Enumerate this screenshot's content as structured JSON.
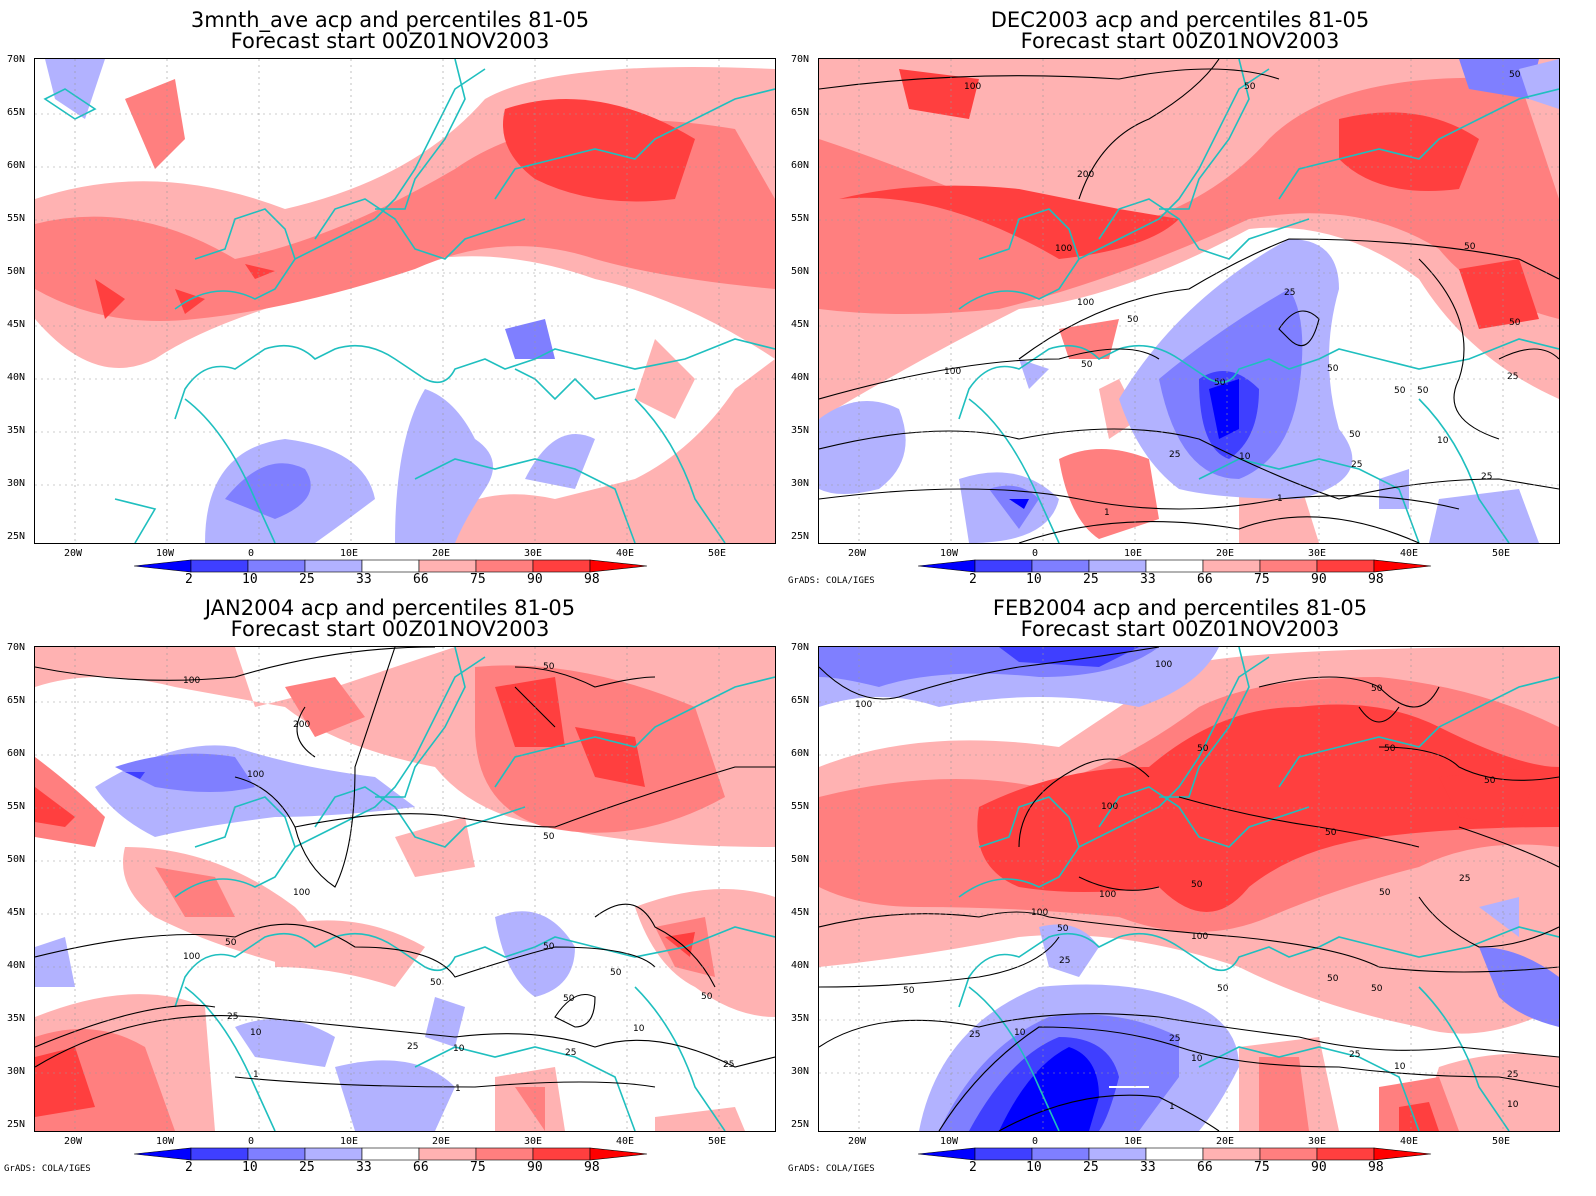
{
  "credit": "GrADS: COLA/IGES",
  "lat_labels": [
    "70N",
    "65N",
    "60N",
    "55N",
    "50N",
    "45N",
    "40N",
    "35N",
    "30N",
    "25N"
  ],
  "lon_labels": [
    "20W",
    "10W",
    "0",
    "10E",
    "20E",
    "30E",
    "40E",
    "50E"
  ],
  "colorbar": {
    "labels": [
      "2",
      "10",
      "25",
      "33",
      "66",
      "75",
      "90",
      "98"
    ],
    "colors": [
      "#0000ff",
      "#3f3fff",
      "#7f7fff",
      "#b2b2ff",
      "#ffffff",
      "#ffb2b2",
      "#ff7f7f",
      "#ff3f3f",
      "#ff0000"
    ]
  },
  "colors": {
    "coast": "#1fbfbf",
    "contour": "#000000"
  },
  "panels": [
    {
      "title_line1": "3mnth_ave acp and percentiles 81-05",
      "title_line2": "Forecast start 00Z01NOV2003"
    },
    {
      "title_line1": "DEC2003 acp and percentiles 81-05",
      "title_line2": "Forecast start 00Z01NOV2003"
    },
    {
      "title_line1": "JAN2004 acp and percentiles 81-05",
      "title_line2": "Forecast start 00Z01NOV2003"
    },
    {
      "title_line1": "FEB2004 acp and percentiles 81-05",
      "title_line2": "Forecast start 00Z01NOV2003"
    }
  ],
  "contour_labels": {
    "p2": [
      "100",
      "50",
      "50",
      "200",
      "100",
      "100",
      "50",
      "25",
      "50",
      "100",
      "50",
      "50",
      "50",
      "50",
      "50",
      "25",
      "10",
      "25",
      "50",
      "1",
      "1",
      "50",
      "25",
      "10",
      "25"
    ],
    "p3": [
      "100",
      "50",
      "200",
      "100",
      "50",
      "100",
      "50",
      "100",
      "50",
      "50",
      "50",
      "50",
      "25",
      "10",
      "25",
      "10",
      "25",
      "1",
      "1",
      "10",
      "25",
      "50"
    ],
    "p4": [
      "100",
      "100",
      "50",
      "50",
      "50",
      "50",
      "100",
      "50",
      "100",
      "100",
      "50",
      "50",
      "100",
      "50",
      "25",
      "50",
      "50",
      "25",
      "10",
      "25",
      "10",
      "1",
      "25",
      "10",
      "25",
      "10",
      "50",
      "50",
      "25"
    ]
  }
}
